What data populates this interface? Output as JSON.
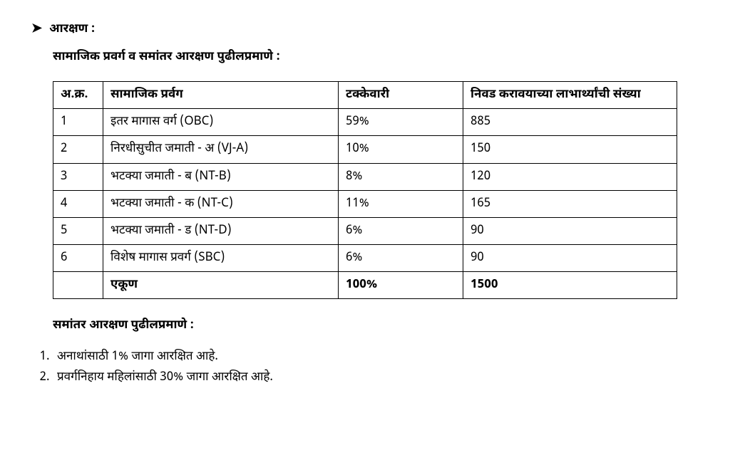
{
  "heading": {
    "bullet_glyph": "➤",
    "title": "आरक्षण :",
    "subtitle": "सामाजिक प्रवर्ग व समांतर आरक्षण पुढीलप्रमाणे :"
  },
  "table": {
    "columns": [
      "अ.क्र.",
      "सामाजिक प्रर्वग",
      "टक्केवारी",
      "निवड करावयाच्या लाभार्थ्यांची संख्या"
    ],
    "rows": [
      [
        "1",
        "इतर मागास वर्ग (OBC)",
        "59%",
        "885"
      ],
      [
        "2",
        "निरधीसुचीत जमाती - अ (VJ-A)",
        "10%",
        "150"
      ],
      [
        "3",
        "भटक्या जमाती - ब (NT-B)",
        "8%",
        "120"
      ],
      [
        "4",
        "भटक्या जमाती - क (NT-C)",
        "11%",
        "165"
      ],
      [
        "5",
        "भटक्या जमाती - ड  (NT-D)",
        "6%",
        "90"
      ],
      [
        "6",
        "विशेष मागास प्रवर्ग (SBC)",
        "6%",
        "90"
      ]
    ],
    "total_row": [
      "",
      "एकूण",
      "100%",
      "1500"
    ]
  },
  "parallel": {
    "heading": "समांतर आरक्षण पुढीलप्रमाणे :",
    "notes": [
      "अनाथांसाठी 1% जागा आरक्षित आहे.",
      "प्रवर्गनिहाय महिलांसाठी 30% जागा आरक्षित आहे."
    ]
  }
}
